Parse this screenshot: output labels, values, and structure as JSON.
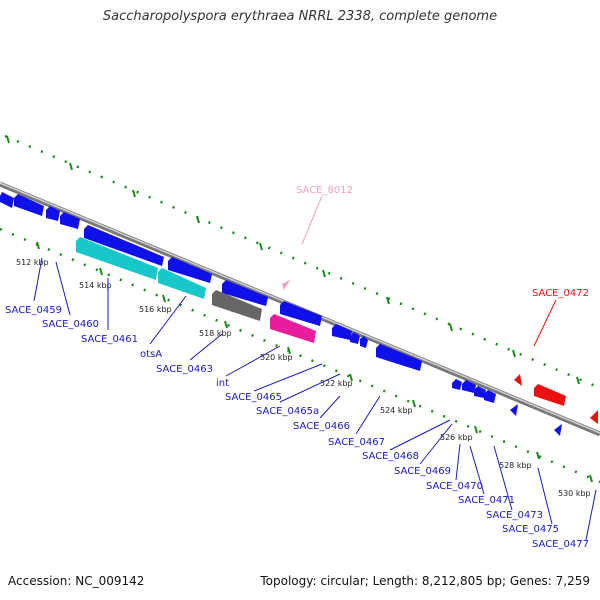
{
  "title": "Saccharopolyspora erythraea NRRL 2338, complete genome",
  "footer": {
    "accession": "Accession: NC_009142",
    "topology": "Topology: circular; Length: 8,212,805 bp; Genes: 7,259"
  },
  "colors": {
    "forward_gene": "#1010e8",
    "reverse_gene": "#ee1010",
    "cyan_gene": "#18c8c8",
    "gray_gene": "#666666",
    "magenta_gene": "#e81c9c",
    "pink_label": "#f0a0c8",
    "label_blue": "#1a1ab8",
    "tick_green": "#1a8a1a",
    "backbone": "#888888"
  },
  "ticks": [
    {
      "label": "512 kbp"
    },
    {
      "label": "514 kbp"
    },
    {
      "label": "516 kbp"
    },
    {
      "label": "518 kbp"
    },
    {
      "label": "520 kbp"
    },
    {
      "label": "522 kbp"
    },
    {
      "label": "524 kbp"
    },
    {
      "label": "526 kbp"
    },
    {
      "label": "528 kbp"
    },
    {
      "label": "530 kbp"
    }
  ],
  "genes": [
    {
      "label": "SACE_0459"
    },
    {
      "label": "SACE_0460"
    },
    {
      "label": "SACE_0461"
    },
    {
      "label": "otsA"
    },
    {
      "label": "SACE_0463"
    },
    {
      "label": "int"
    },
    {
      "label": "SACE_0465"
    },
    {
      "label": "SACE_0465a"
    },
    {
      "label": "SACE_0466"
    },
    {
      "label": "SACE_0467"
    },
    {
      "label": "SACE_0468"
    },
    {
      "label": "SACE_0469"
    },
    {
      "label": "SACE_0470"
    },
    {
      "label": "SACE_0471"
    },
    {
      "label": "SACE_0473"
    },
    {
      "label": "SACE_0475"
    },
    {
      "label": "SACE_0477"
    }
  ],
  "top_labels": [
    {
      "label": "SACE_8012"
    },
    {
      "label": "SACE_0472"
    }
  ]
}
